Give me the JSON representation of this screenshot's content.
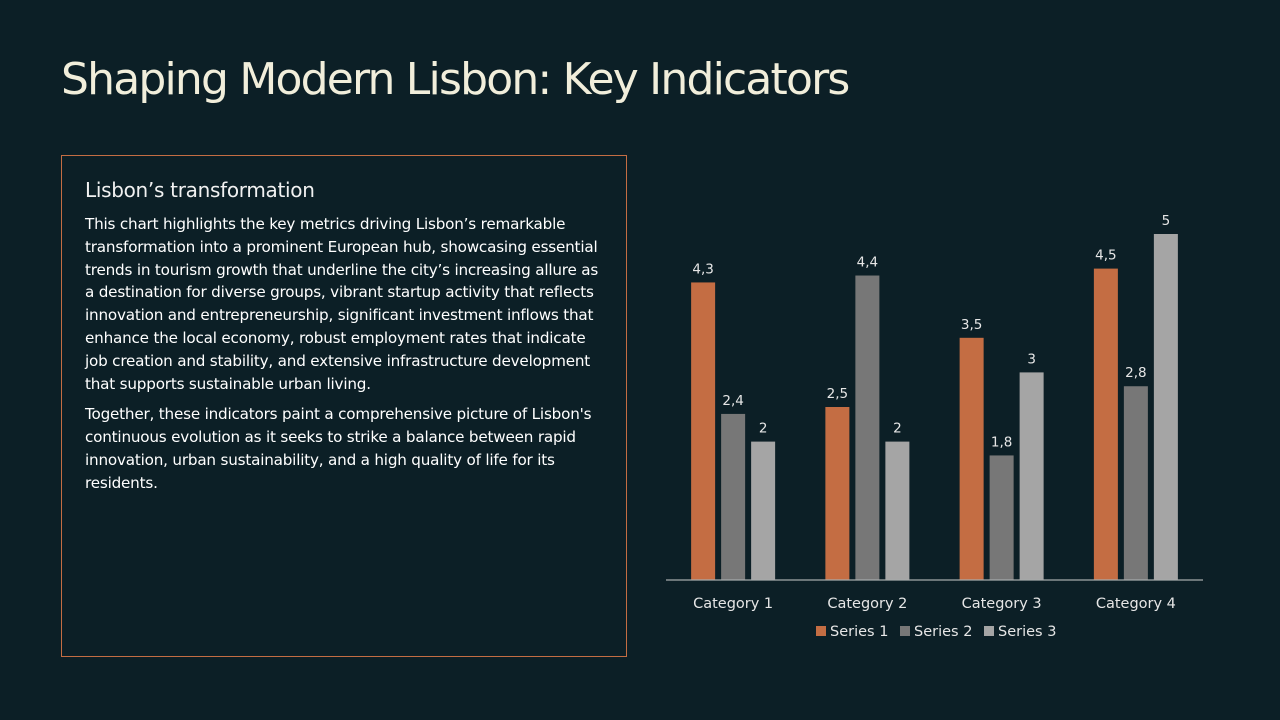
{
  "slide": {
    "title": "Shaping Modern Lisbon: Key Indicators"
  },
  "text_box": {
    "heading": "Lisbon’s transformation",
    "paragraphs": [
      "This chart highlights the key metrics driving Lisbon’s remarkable transformation into a prominent European hub, showcasing essential trends in tourism growth that underline the city’s increasing allure as a destination for diverse groups, vibrant startup activity that reflects innovation and entrepreneurship, significant investment inflows that enhance the local economy, robust employment rates that indicate job creation and stability, and extensive infrastructure development that supports sustainable urban living.",
      "Together, these indicators paint a comprehensive picture of Lisbon's continuous evolution as it seeks to strike a balance between rapid innovation, urban sustainability, and a high quality of life for its residents."
    ]
  },
  "colors": {
    "accent": "#c46d43",
    "background": "#0c1f26",
    "title": "#f1eedb",
    "axis": "#a6aaab"
  },
  "chart_data": {
    "type": "bar",
    "title": "",
    "xlabel": "",
    "ylabel": "",
    "categories": [
      "Category 1",
      "Category 2",
      "Category 3",
      "Category 4"
    ],
    "series": [
      {
        "name": "Series 1",
        "color": "#c46d43",
        "values": [
          4.3,
          2.5,
          3.5,
          4.5
        ],
        "labels": [
          "4,3",
          "2,5",
          "3,5",
          "4,5"
        ]
      },
      {
        "name": "Series 2",
        "color": "#777777",
        "values": [
          2.4,
          4.4,
          1.8,
          2.8
        ],
        "labels": [
          "2,4",
          "4,4",
          "1,8",
          "2,8"
        ]
      },
      {
        "name": "Series 3",
        "color": "#a5a5a5",
        "values": [
          2,
          2,
          3,
          5
        ],
        "labels": [
          "2",
          "2",
          "3",
          "5"
        ]
      }
    ],
    "ylim": [
      0,
      5.3
    ],
    "grid": false,
    "data_labels": true,
    "legend": "bottom"
  }
}
